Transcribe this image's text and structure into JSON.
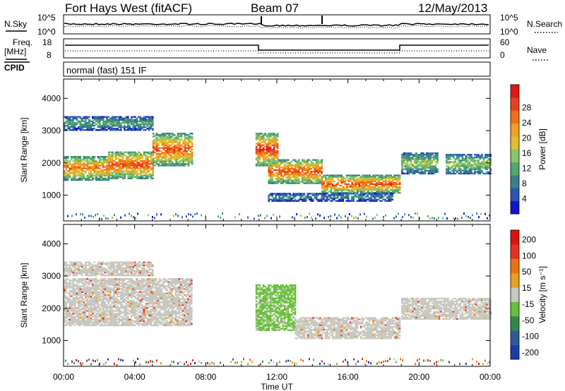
{
  "header": {
    "station": "Fort Hays West (fitACF)",
    "beam": "Beam 07",
    "date": "12/May/2013"
  },
  "strip_noise": {
    "left_label": "N.Sky",
    "left_ticks": [
      "10^5",
      "10^0"
    ],
    "right_label": "N.Search",
    "right_ticks": [
      "10^5",
      "10^0"
    ]
  },
  "strip_freq": {
    "left_label_1": "Freq.",
    "left_label_2": "[MHz]",
    "left_ticks": [
      "18",
      "8"
    ],
    "right_label": "Nave",
    "right_ticks": [
      "60",
      "0"
    ]
  },
  "cpid": {
    "label": "CPID",
    "mode": "normal (fast) 151 IF"
  },
  "chart_data": [
    {
      "type": "heatmap",
      "name_panel": "power",
      "xlabel": "Time UT",
      "ylabel": "Slant Range [km]",
      "x_ticks": [
        "00:00",
        "04:00",
        "08:00",
        "12:00",
        "16:00",
        "20:00",
        "00:00"
      ],
      "xlim_hours": [
        0,
        24
      ],
      "y_ticks": [
        1000,
        2000,
        3000,
        4000
      ],
      "ylim_km": [
        200,
        4600
      ],
      "colorbar": {
        "label": "Power [dB]",
        "ticks": [
          "4",
          "8",
          "12",
          "16",
          "20",
          "24",
          "28"
        ],
        "colors": [
          "#1414d2",
          "#2b55b5",
          "#3a7f8a",
          "#52a86b",
          "#88c46a",
          "#e3bd2b",
          "#f0a020",
          "#f07018",
          "#e84020",
          "#e01818"
        ]
      },
      "echo_bands": [
        {
          "t0": 0.0,
          "t1": 2.5,
          "r0": 1450,
          "r1": 2200,
          "peak": 22
        },
        {
          "t0": 2.5,
          "t1": 5.0,
          "r0": 1500,
          "r1": 2350,
          "peak": 24
        },
        {
          "t0": 5.0,
          "t1": 7.2,
          "r0": 1900,
          "r1": 2900,
          "peak": 24
        },
        {
          "t0": 0.0,
          "t1": 5.0,
          "r0": 3000,
          "r1": 3450,
          "peak": 10
        },
        {
          "t0": 10.8,
          "t1": 12.0,
          "r0": 1900,
          "r1": 2900,
          "peak": 26
        },
        {
          "t0": 11.5,
          "t1": 14.5,
          "r0": 1350,
          "r1": 2100,
          "peak": 24
        },
        {
          "t0": 14.5,
          "t1": 18.9,
          "r0": 1050,
          "r1": 1600,
          "peak": 24
        },
        {
          "t0": 11.5,
          "t1": 18.5,
          "r0": 800,
          "r1": 1050,
          "peak": 8
        },
        {
          "t0": 19.0,
          "t1": 21.0,
          "r0": 1650,
          "r1": 2300,
          "peak": 14
        },
        {
          "t0": 21.5,
          "t1": 24.0,
          "r0": 1650,
          "r1": 2250,
          "peak": 14
        }
      ]
    },
    {
      "type": "heatmap",
      "name_panel": "velocity",
      "xlabel": "Time UT",
      "ylabel": "Slant Range [km]",
      "x_ticks": [
        "00:00",
        "04:00",
        "08:00",
        "12:00",
        "16:00",
        "20:00",
        "00:00"
      ],
      "xlim_hours": [
        0,
        24
      ],
      "y_ticks": [
        1000,
        2000,
        3000,
        4000
      ],
      "ylim_km": [
        200,
        4600
      ],
      "colorbar": {
        "label": "Velocity [m s⁻¹]",
        "ticks": [
          "200",
          "100",
          "50",
          "15",
          "-15",
          "-50",
          "-100",
          "-200"
        ],
        "colors": [
          "#1c3aa8",
          "#2f5aa0",
          "#2e8a4e",
          "#66c038",
          "#c8c8c0",
          "#e8a020",
          "#f07010",
          "#e83020",
          "#e01010"
        ]
      },
      "echo_bands": [
        {
          "t0": 0.0,
          "t1": 7.2,
          "r0": 1450,
          "r1": 2900,
          "v": 0
        },
        {
          "t0": 0.0,
          "t1": 5.0,
          "r0": 3000,
          "r1": 3450,
          "v": 0
        },
        {
          "t0": 10.8,
          "t1": 13.0,
          "r0": 1300,
          "r1": 2700,
          "v": 60
        },
        {
          "t0": 13.0,
          "t1": 18.9,
          "r0": 1050,
          "r1": 1700,
          "v": 0
        },
        {
          "t0": 19.0,
          "t1": 24.0,
          "r0": 1650,
          "r1": 2300,
          "v": 0
        }
      ]
    }
  ]
}
